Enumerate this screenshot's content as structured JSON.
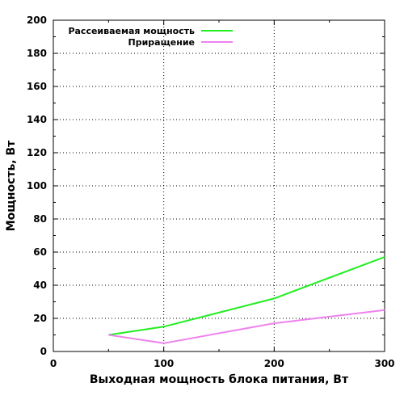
{
  "chart_data": {
    "type": "line",
    "xlabel": "Выходная мощность блока питания, Вт",
    "ylabel": "Мощность, Вт",
    "xlim": [
      0,
      300
    ],
    "ylim": [
      0,
      200
    ],
    "x_ticks": [
      "0",
      "100",
      "200",
      "300"
    ],
    "y_ticks": [
      "0",
      "20",
      "40",
      "60",
      "80",
      "100",
      "120",
      "140",
      "160",
      "180",
      "200"
    ],
    "grid": true,
    "legend_position": "top-left",
    "series": [
      {
        "name": "Рассеиваемая мощность",
        "color": "#22ee22",
        "x": [
          50,
          100,
          200,
          300
        ],
        "y": [
          10,
          15,
          32,
          57
        ]
      },
      {
        "name": "Приращение",
        "color": "#ee82ee",
        "x": [
          50,
          100,
          200,
          300
        ],
        "y": [
          10,
          5,
          17,
          25
        ]
      }
    ]
  }
}
